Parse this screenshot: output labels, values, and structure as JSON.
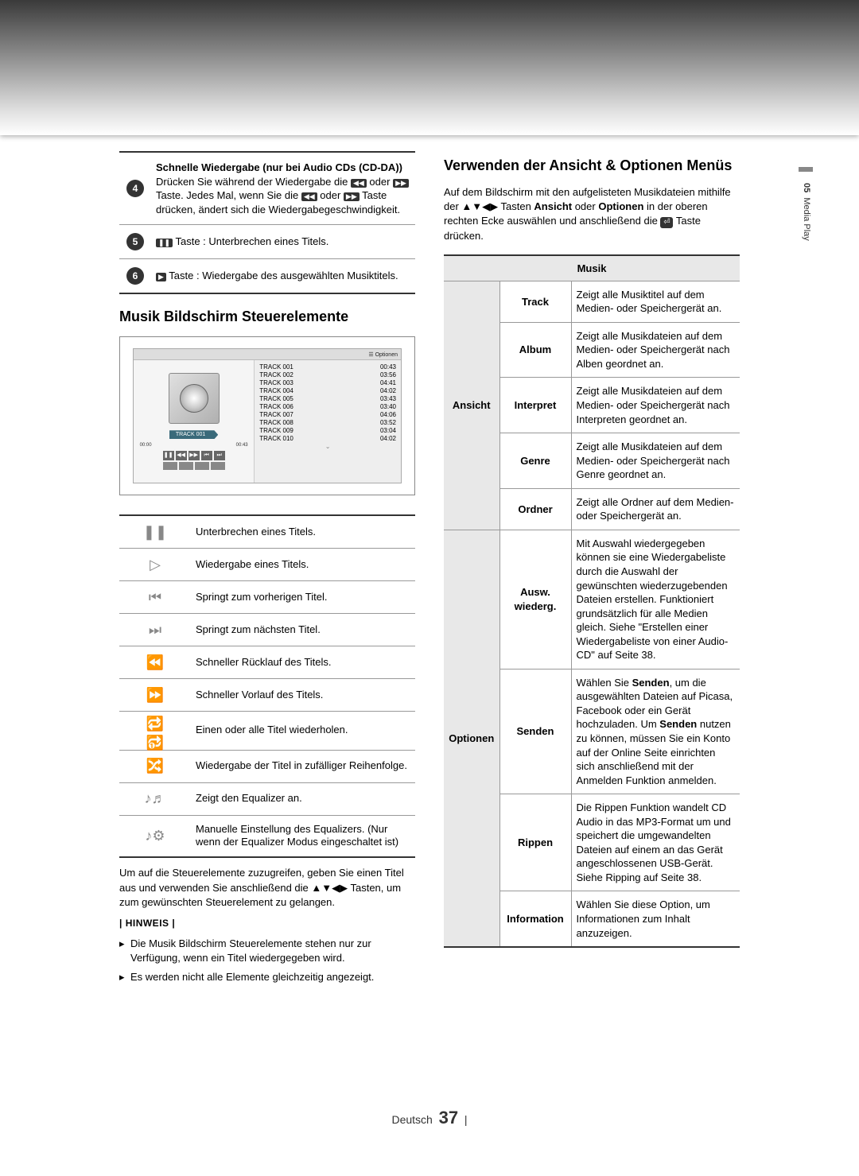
{
  "side": {
    "section_num": "05",
    "section_name": "Media Play"
  },
  "pill_table": {
    "rows": [
      {
        "num": "4",
        "html": "<b>Schnelle Wiedergabe (nur bei Audio CDs (CD-DA))</b><br>Drücken Sie während der Wiedergabe die <span class='kbd'>◀◀</span> oder <span class='kbd'>▶▶</span> Taste. Jedes Mal, wenn Sie die <span class='kbd'>◀◀</span> oder <span class='kbd'>▶▶</span> Taste drücken, ändert sich die Wiedergabegeschwindigkeit."
      },
      {
        "num": "5",
        "html": "<span class='kbd'>❚❚</span> Taste : Unterbrechen eines Titels."
      },
      {
        "num": "6",
        "html": "<span class='kbd'>▶</span> Taste : Wiedergabe des ausgewählten Musiktitels."
      }
    ]
  },
  "left_heading": "Musik Bildschirm Steuerelemente",
  "music_screen": {
    "options_label": "☰ Optionen",
    "current_track": "TRACK 001",
    "time_start": "00:00",
    "time_end": "00:43",
    "tracks": [
      {
        "name": "TRACK 001",
        "dur": "00:43"
      },
      {
        "name": "TRACK 002",
        "dur": "03:56"
      },
      {
        "name": "TRACK 003",
        "dur": "04:41"
      },
      {
        "name": "TRACK 004",
        "dur": "04:02"
      },
      {
        "name": "TRACK 005",
        "dur": "03:43"
      },
      {
        "name": "TRACK 006",
        "dur": "03:40"
      },
      {
        "name": "TRACK 007",
        "dur": "04:06"
      },
      {
        "name": "TRACK 008",
        "dur": "03:52"
      },
      {
        "name": "TRACK 009",
        "dur": "03:04"
      },
      {
        "name": "TRACK 010",
        "dur": "04:02"
      }
    ]
  },
  "controls": [
    {
      "icon": "❚❚",
      "desc": "Unterbrechen eines Titels."
    },
    {
      "icon": "▷",
      "desc": "Wiedergabe eines Titels."
    },
    {
      "icon": "⏮",
      "desc": "Springt zum vorherigen Titel."
    },
    {
      "icon": "⏭",
      "desc": "Springt zum nächsten Titel."
    },
    {
      "icon": "⏪",
      "desc": "Schneller Rücklauf des Titels."
    },
    {
      "icon": "⏩",
      "desc": "Schneller Vorlauf des Titels."
    },
    {
      "icon": "🔁 🔂",
      "desc": "Einen oder alle Titel wiederholen."
    },
    {
      "icon": "🔀",
      "desc": "Wiedergabe der Titel in zufälliger Reihenfolge."
    },
    {
      "icon": "♪♬",
      "desc": "Zeigt den Equalizer an."
    },
    {
      "icon": "♪⚙",
      "desc": "Manuelle Einstellung des Equalizers. (Nur wenn der Equalizer Modus eingeschaltet ist)"
    }
  ],
  "ctrl_para": "Um auf die Steuerelemente zuzugreifen, geben Sie einen Titel aus und verwenden Sie anschließend die ▲▼◀▶ Tasten, um zum gewünschten Steuerelement zu gelangen.",
  "hinweis_title": "| HINWEIS |",
  "hinweise": [
    "Die Musik Bildschirm Steuerelemente stehen nur zur Verfügung, wenn ein Titel wiedergegeben wird.",
    "Es werden nicht alle Elemente gleichzeitig angezeigt."
  ],
  "right_heading": "Verwenden der Ansicht & Optionen Menüs",
  "right_intro": "Auf dem Bildschirm mit den aufgelisteten Musikdateien mithilfe der ▲▼◀▶ Tasten <b>Ansicht</b> oder <b>Optionen</b> in der oberen rechten Ecke auswählen und anschließend die <span class='cbtn'>⏎</span> Taste drücken.",
  "options_table": {
    "header": "Musik",
    "groups": [
      {
        "cat": "Ansicht",
        "rows": [
          {
            "key": "Track",
            "desc": "Zeigt alle Musiktitel auf dem Medien- oder Speichergerät an."
          },
          {
            "key": "Album",
            "desc": "Zeigt alle Musikdateien auf dem Medien- oder Speichergerät nach Alben geordnet an."
          },
          {
            "key": "Interpret",
            "desc": "Zeigt alle Musikdateien auf dem Medien- oder Speichergerät nach Interpreten geordnet an."
          },
          {
            "key": "Genre",
            "desc": "Zeigt alle Musikdateien auf dem Medien- oder Speichergerät nach Genre geordnet an."
          },
          {
            "key": "Ordner",
            "desc": "Zeigt alle Ordner auf dem Medien- oder Speichergerät an."
          }
        ]
      },
      {
        "cat": "Optionen",
        "rows": [
          {
            "key": "Ausw. wiederg.",
            "desc": "Mit Auswahl wiedergegeben können sie eine Wiedergabeliste durch die Auswahl der gewünschten wiederzugebenden Dateien erstellen. Funktioniert grundsätzlich für alle Medien gleich. Siehe \"Erstellen einer Wiedergabeliste von einer Audio-CD\" auf Seite 38."
          },
          {
            "key": "Senden",
            "desc": "Wählen Sie <b>Senden</b>, um die ausgewählten Dateien auf Picasa, Facebook oder ein Gerät hochzuladen. Um <b>Senden</b> nutzen zu können, müssen Sie ein Konto auf der Online Seite einrichten sich anschließend mit der Anmelden Funktion anmelden."
          },
          {
            "key": "Rippen",
            "desc": "Die Rippen Funktion wandelt CD Audio in das MP3-Format um und speichert die umgewandelten Dateien auf einem an das Gerät angeschlossenen USB-Gerät. Siehe Ripping auf Seite 38."
          },
          {
            "key": "Information",
            "desc": "Wählen Sie diese Option, um Informationen zum Inhalt anzuzeigen."
          }
        ]
      }
    ]
  },
  "footer": {
    "lang": "Deutsch",
    "page": "37",
    "bar": "|"
  }
}
